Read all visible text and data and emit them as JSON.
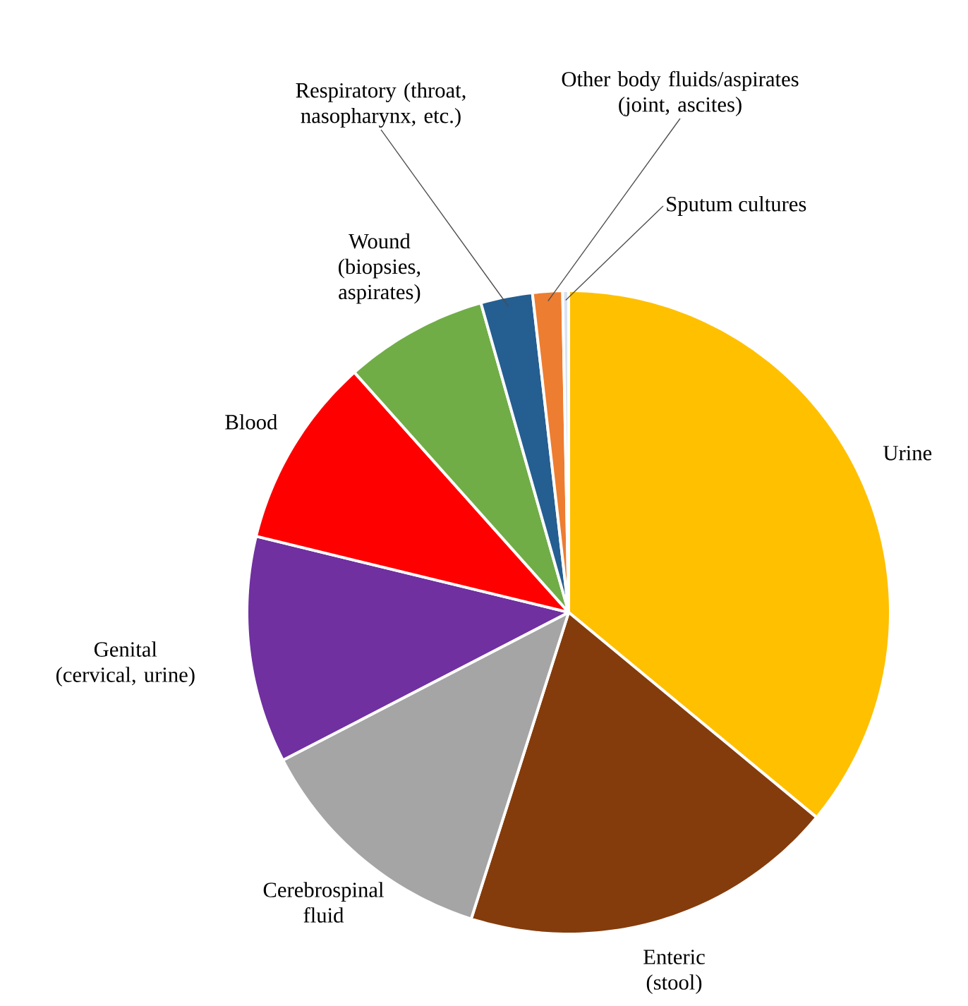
{
  "chart_data": {
    "type": "pie",
    "categories": [
      "Urine",
      "Enteric (stool)",
      "Cerebrospinal fluid",
      "Genital (cervical, urine)",
      "Blood",
      "Wound (biopsies, aspirates)",
      "Respiratory (throat, nasopharynx, etc.)",
      "Other body fluids/aspirates (joint, ascites)",
      "Sputum cultures"
    ],
    "values": [
      36.0,
      18.9,
      12.5,
      11.4,
      9.6,
      7.2,
      2.6,
      1.5,
      0.3
    ],
    "colors": [
      "#ffc000",
      "#843c0c",
      "#a5a5a5",
      "#7030a0",
      "#ff0000",
      "#70ad47",
      "#255e91",
      "#ed7d31",
      "#dae3f3"
    ]
  }
}
